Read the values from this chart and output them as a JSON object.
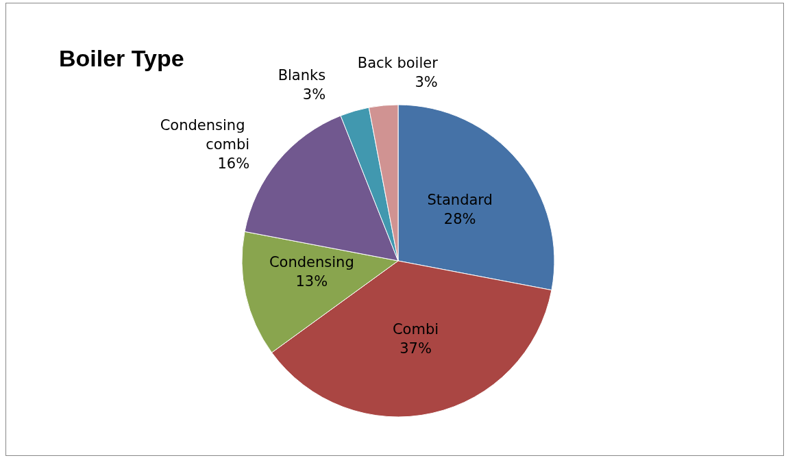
{
  "chart_data": {
    "type": "pie",
    "title": "Boiler Type",
    "categories": [
      "Standard",
      "Combi",
      "Condensing",
      "Condensing combi",
      "Blanks",
      "Back boiler"
    ],
    "values": [
      28,
      37,
      13,
      16,
      3,
      3
    ],
    "value_labels": [
      "28%",
      "37%",
      "13%",
      "16%",
      "3%",
      "3%"
    ],
    "colors": [
      "#4572a7",
      "#aa4643",
      "#89a54e",
      "#71588f",
      "#4198af",
      "#d09392"
    ]
  }
}
